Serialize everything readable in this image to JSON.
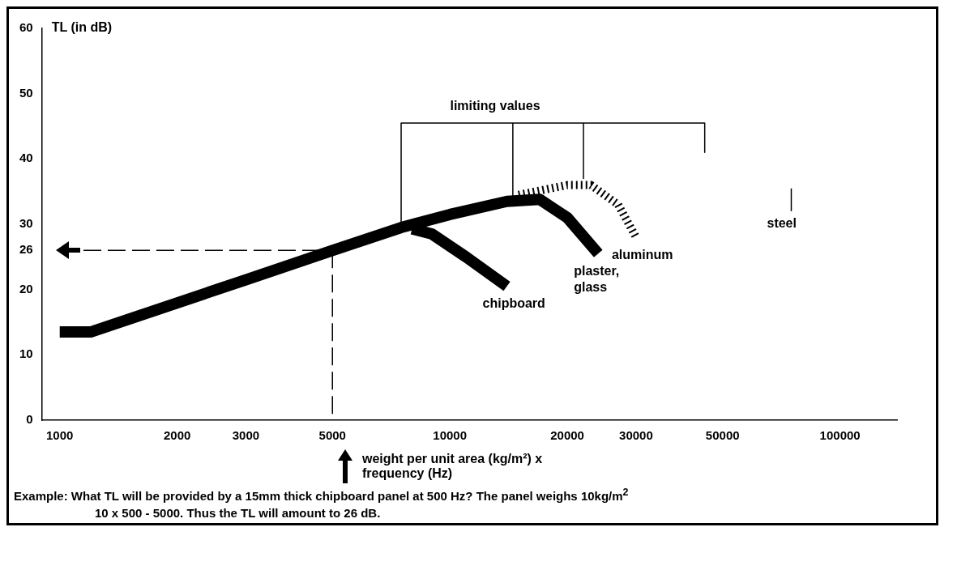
{
  "chart_data": {
    "type": "line",
    "ylabel": "TL (in dB)",
    "xlabel": "weight per unit area (kg/m²) x frequency (Hz)",
    "log": "x",
    "xlim": [
      900,
      140000
    ],
    "xticks": [
      1000,
      2000,
      3000,
      5000,
      10000,
      20000,
      30000,
      50000,
      100000
    ],
    "ylim": [
      0,
      60
    ],
    "yticks": [
      0,
      10,
      20,
      26,
      30,
      40,
      50,
      60
    ],
    "grid": false,
    "legend": false,
    "series": [
      {
        "name": "chipboard",
        "color": "#000000",
        "x": [
          8000,
          9000,
          11000,
          14000
        ],
        "values": [
          29.3,
          28.5,
          25,
          20.5
        ]
      },
      {
        "name": "plaster, glass",
        "color": "#000000",
        "x": [
          1000,
          1200,
          3000,
          5000,
          7500,
          10000,
          14000,
          17000,
          20000,
          24000
        ],
        "values": [
          13.5,
          13.5,
          21.5,
          26,
          29.5,
          31.5,
          33.5,
          33.8,
          31,
          25.5
        ]
      },
      {
        "name": "aluminum",
        "color": "#000000",
        "line_style": "dotted",
        "x": [
          15000,
          20000,
          23000,
          27000,
          30000
        ],
        "values": [
          34.5,
          36,
          36,
          33,
          28
        ]
      },
      {
        "color": "#000000",
        "x": [
          7500,
          7500,
          14500,
          14500,
          14500,
          22000,
          22000,
          22000,
          45000,
          45000
        ],
        "values": [
          29.5,
          45.5,
          45.5,
          34,
          45.5,
          45.5,
          37,
          45.5,
          45.5,
          41
        ]
      },
      {
        "name": "steel",
        "color": "#000000",
        "x": [
          75000,
          75000
        ],
        "values": [
          32,
          35.5
        ]
      },
      {
        "color": "#000000",
        "line_style": "dashed",
        "x": [
          1150,
          5000
        ],
        "values": [
          26,
          26
        ]
      },
      {
        "color": "#000000",
        "line_style": "dashed",
        "x": [
          5000,
          5000
        ],
        "values": [
          26,
          0
        ]
      }
    ],
    "annotations": [
      "limiting values",
      "Example: What TL will be provided by a 15mm thick chipboard panel at 500 Hz? The panel weighs 10kg/m$^{2}$",
      "10 x 500 - 5000. Thus the TL will amount to 26 dB."
    ]
  }
}
